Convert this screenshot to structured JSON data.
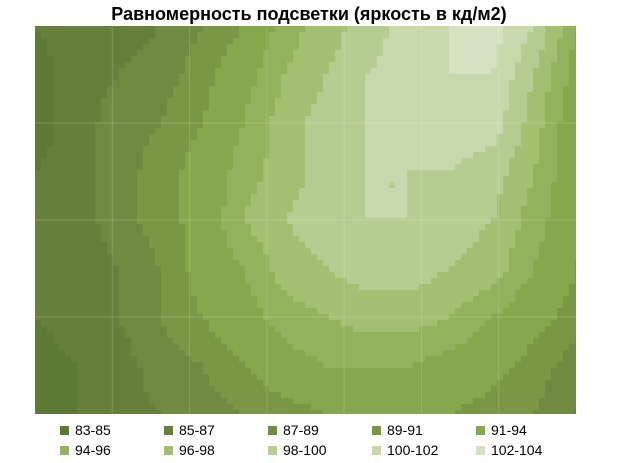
{
  "chart_data": {
    "type": "heatmap",
    "title": "Равномерность подсветки (яркость в кд/м2)",
    "xlabel": "",
    "ylabel": "",
    "grid": true,
    "legend_position": "bottom",
    "bands": [
      {
        "label": "83-85",
        "color": "#5d7a34"
      },
      {
        "label": "85-87",
        "color": "#667f3a"
      },
      {
        "label": "87-89",
        "color": "#6f8b41"
      },
      {
        "label": "89-91",
        "color": "#799745"
      },
      {
        "label": "91-94",
        "color": "#86a84d"
      },
      {
        "label": "94-96",
        "color": "#93b25e"
      },
      {
        "label": "96-98",
        "color": "#a3bf72"
      },
      {
        "label": "98-100",
        "color": "#b5cd90"
      },
      {
        "label": "100-102",
        "color": "#c7d8ac"
      },
      {
        "label": "102-104",
        "color": "#d5e2c2"
      }
    ],
    "z": [
      [
        85,
        86,
        86,
        87,
        89,
        91,
        95,
        97,
        99,
        101,
        102,
        103,
        100,
        94
      ],
      [
        84,
        86,
        87,
        88,
        90,
        93,
        96,
        98,
        100,
        101,
        102,
        102,
        98,
        93
      ],
      [
        84,
        86,
        88,
        89,
        91,
        94,
        97,
        99,
        100,
        101,
        101,
        101,
        97,
        92
      ],
      [
        85,
        86,
        88,
        90,
        92,
        95,
        97,
        99,
        100,
        100,
        100,
        99,
        96,
        92
      ],
      [
        85,
        86,
        88,
        90,
        92,
        96,
        98,
        99,
        100,
        100,
        99,
        98,
        95,
        92
      ],
      [
        85,
        86,
        87,
        89,
        92,
        94,
        97,
        98,
        99,
        99,
        98,
        97,
        94,
        91
      ],
      [
        85,
        86,
        87,
        89,
        91,
        93,
        95,
        96,
        97,
        97,
        96,
        94,
        92,
        90
      ],
      [
        84,
        85,
        86,
        88,
        89,
        91,
        93,
        94,
        94,
        94,
        93,
        92,
        90,
        88
      ],
      [
        84,
        85,
        86,
        87,
        88,
        89,
        90,
        91,
        91,
        91,
        91,
        90,
        89,
        87
      ]
    ]
  }
}
